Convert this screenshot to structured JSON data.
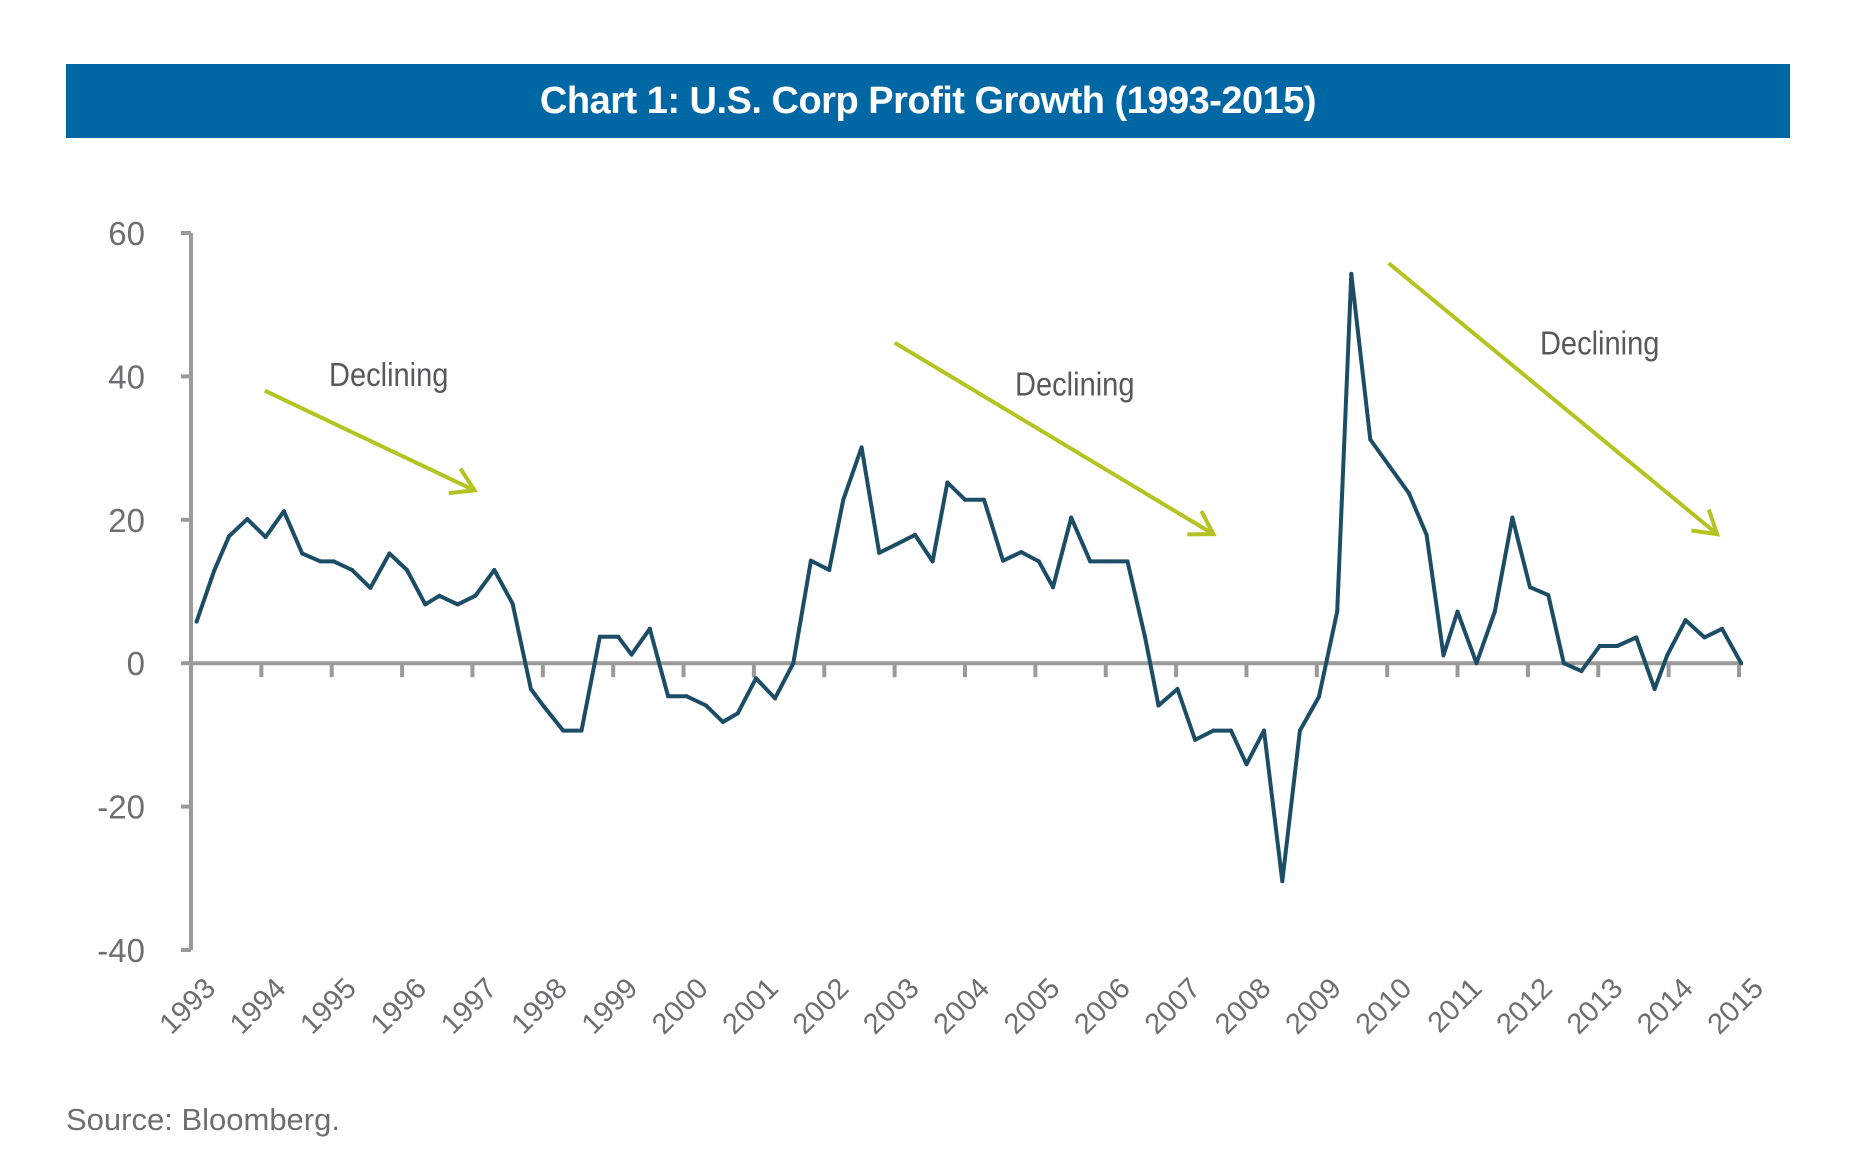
{
  "chart_data": {
    "type": "line",
    "title": "Chart 1: U.S. Corp Profit Growth (1993-2015)",
    "xlabel": "",
    "ylabel": "",
    "xlim": [
      1993,
      2015
    ],
    "ylim": [
      -40,
      60
    ],
    "yticks": [
      "-40",
      "-20",
      "0",
      "20",
      "40",
      "60"
    ],
    "xticks": [
      "1993",
      "1994",
      "1995",
      "1996",
      "1997",
      "1998",
      "1999",
      "2000",
      "2001",
      "2002",
      "2003",
      "2004",
      "2005",
      "2006",
      "2007",
      "2008",
      "2009",
      "2010",
      "2011",
      "2012",
      "2013",
      "2014",
      "2015"
    ],
    "grid": false,
    "colors": {
      "line": "#1c4d66",
      "arrow": "#b5c320",
      "axis": "#9a9a9a",
      "title_bg": "#0067a5"
    },
    "series": [
      {
        "x": [
          1993.08,
          1993.33,
          1993.54,
          1993.8,
          1994.06,
          1994.32,
          1994.58,
          1994.84,
          1995.03,
          1995.29,
          1995.55,
          1995.82,
          1996.07,
          1996.33,
          1996.53,
          1996.79,
          1997.04,
          1997.31,
          1997.57,
          1997.83,
          1998.02,
          1998.29,
          1998.55,
          1998.81,
          1999.07,
          1999.26,
          1999.52,
          1999.78,
          2000.04,
          2000.32,
          2000.56,
          2000.77,
          2001.03,
          2001.3,
          2001.56,
          2001.81,
          2002.07,
          2002.27,
          2002.53,
          2002.78,
          2003.03,
          2003.29,
          2003.54,
          2003.75,
          2004.0,
          2004.27,
          2004.54,
          2004.8,
          2005.05,
          2005.25,
          2005.51,
          2005.78,
          2006.03,
          2006.31,
          2006.56,
          2006.75,
          2007.02,
          2007.27,
          2007.53,
          2007.78,
          2008.0,
          2008.25,
          2008.51,
          2008.76,
          2009.03,
          2009.29,
          2009.49,
          2009.76,
          2010.03,
          2010.31,
          2010.56,
          2010.8,
          2011.0,
          2011.27,
          2011.53,
          2011.78,
          2012.03,
          2012.29,
          2012.51,
          2012.76,
          2013.02,
          2013.27,
          2013.54,
          2013.8,
          2013.98,
          2014.24,
          2014.51,
          2014.76,
          2015.03
        ],
        "y": [
          5.8,
          12.9,
          17.7,
          20.1,
          17.6,
          21.2,
          15.3,
          14.2,
          14.2,
          13.0,
          10.5,
          15.3,
          13.0,
          8.2,
          9.4,
          8.2,
          9.4,
          13.0,
          8.3,
          -3.6,
          -6.1,
          -9.4,
          -9.4,
          3.7,
          3.7,
          1.2,
          4.8,
          -4.6,
          -4.6,
          -5.9,
          -8.2,
          -7.0,
          -2.1,
          -4.9,
          0,
          14.3,
          13.0,
          22.8,
          30.1,
          15.4,
          16.6,
          17.9,
          14.2,
          25.2,
          22.8,
          22.8,
          14.3,
          15.5,
          14.2,
          10.6,
          20.3,
          14.2,
          14.2,
          14.2,
          3.6,
          -5.9,
          -3.6,
          -10.7,
          -9.4,
          -9.4,
          -14.1,
          -9.4,
          -30.4,
          -9.4,
          -4.7,
          7.2,
          54.3,
          31.2,
          27.5,
          23.7,
          17.9,
          1.1,
          7.2,
          0,
          7.2,
          20.3,
          10.6,
          9.5,
          0,
          -1.1,
          2.4,
          2.4,
          3.6,
          -3.6,
          1.1,
          6.0,
          3.6,
          4.8,
          0
        ]
      }
    ],
    "annotations": [
      {
        "text": "Declining",
        "at": [
          1995.81,
          40.3
        ],
        "arrow_from": [
          1994.05,
          38.0
        ],
        "arrow_to": [
          1997.03,
          24.1
        ]
      },
      {
        "text": "Declining",
        "at": [
          2005.56,
          39.0
        ],
        "arrow_from": [
          2003.0,
          44.7
        ],
        "arrow_to": [
          2007.53,
          18.0
        ]
      },
      {
        "text": "Declining",
        "at": [
          2013.02,
          44.7
        ],
        "arrow_from": [
          2010.02,
          55.8
        ],
        "arrow_to": [
          2014.69,
          18.0
        ]
      }
    ]
  },
  "source": "Source: Bloomberg."
}
